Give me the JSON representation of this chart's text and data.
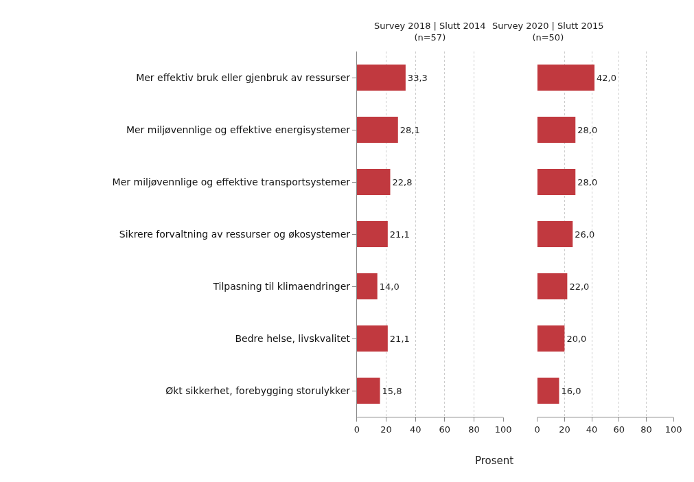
{
  "chart_data": [
    {
      "type": "bar",
      "orientation": "horizontal",
      "title": "Survey 2018 | Slutt 2014\n(n=57)",
      "xlabel": "Prosent",
      "categories": [
        "Mer effektiv bruk eller gjenbruk av ressurser",
        "Mer miljøvennlige og effektive energisystemer",
        "Mer miljøvennlige og effektive transportsystemer",
        "Sikrere forvaltning av ressurser og økosystemer",
        "Tilpasning til klimaendringer",
        "Bedre helse, livskvalitet",
        "Økt sikkerhet, forebygging storulykker"
      ],
      "values": [
        33.3,
        28.1,
        22.8,
        21.1,
        14.0,
        21.1,
        15.8
      ],
      "value_labels": [
        "33,3",
        "28,1",
        "22,8",
        "21,1",
        "14,0",
        "21,1",
        "15,8"
      ],
      "color": "#c1393f",
      "xlim": [
        0,
        100
      ],
      "xticks": [
        0,
        20,
        40,
        60,
        80,
        100
      ],
      "grid": "x"
    },
    {
      "type": "bar",
      "orientation": "horizontal",
      "title": "Survey 2020 | Slutt 2015\n(n=50)",
      "categories": [
        "Mer effektiv bruk eller gjenbruk av ressurser",
        "Mer miljøvennlige og effektive energisystemer",
        "Mer miljøvennlige og effektive transportsystemer",
        "Sikrere forvaltning av ressurser og økosystemer",
        "Tilpasning til klimaendringer",
        "Bedre helse, livskvalitet",
        "Økt sikkerhet, forebygging storulykker"
      ],
      "values": [
        42.0,
        28.0,
        28.0,
        26.0,
        22.0,
        20.0,
        16.0
      ],
      "value_labels": [
        "42,0",
        "28,0",
        "28,0",
        "26,0",
        "22,0",
        "20,0",
        "16,0"
      ],
      "color": "#c1393f",
      "xlim": [
        0,
        100
      ],
      "xticks": [
        0,
        20,
        40,
        60,
        80,
        100
      ],
      "grid": "x",
      "tick_labels": "x"
    }
  ]
}
